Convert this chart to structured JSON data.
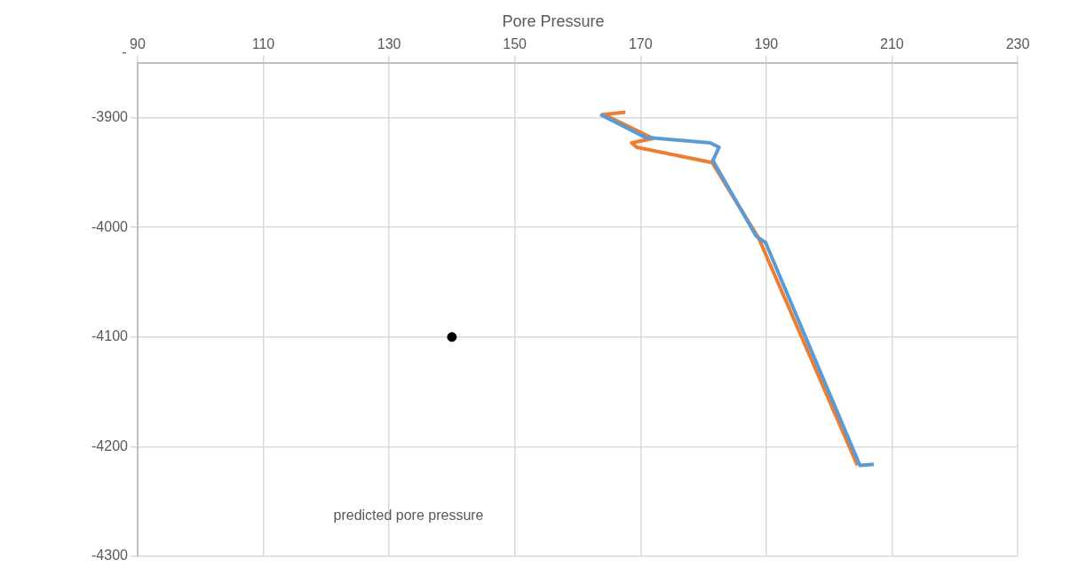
{
  "chart_data": {
    "type": "line",
    "title": "Pore Pressure",
    "xlim": [
      90,
      230
    ],
    "xticks": [
      90,
      110,
      130,
      150,
      170,
      190,
      210,
      230
    ],
    "ylim": [
      -4300,
      -3850
    ],
    "yticks": [
      -3900,
      -4000,
      -4100,
      -4200,
      -4300
    ],
    "grid": true,
    "legend": false,
    "series": [
      {
        "color": "#5b9bd5",
        "x": [
          163.6,
          170.8,
          181.1,
          182.5,
          181.5,
          188.4,
          189.9,
          204.9,
          207.1
        ],
        "values": [
          -3897,
          -3918,
          -3923,
          -3927,
          -3939,
          -4008,
          -4014,
          -4217,
          -4216
        ]
      },
      {
        "color": "#ed7d31",
        "x": [
          167.6,
          164.1,
          172.0,
          168.6,
          169.4,
          181.4,
          188.8,
          204.5
        ],
        "values": [
          -3895,
          -3897,
          -3919,
          -3923,
          -3927,
          -3941,
          -4010,
          -4217
        ]
      },
      {
        "type": "scatter",
        "color": "#000000",
        "x": [
          140
        ],
        "values": [
          -4100
        ]
      }
    ],
    "annotations": [
      "predicted pore pressure",
      "-"
    ]
  }
}
